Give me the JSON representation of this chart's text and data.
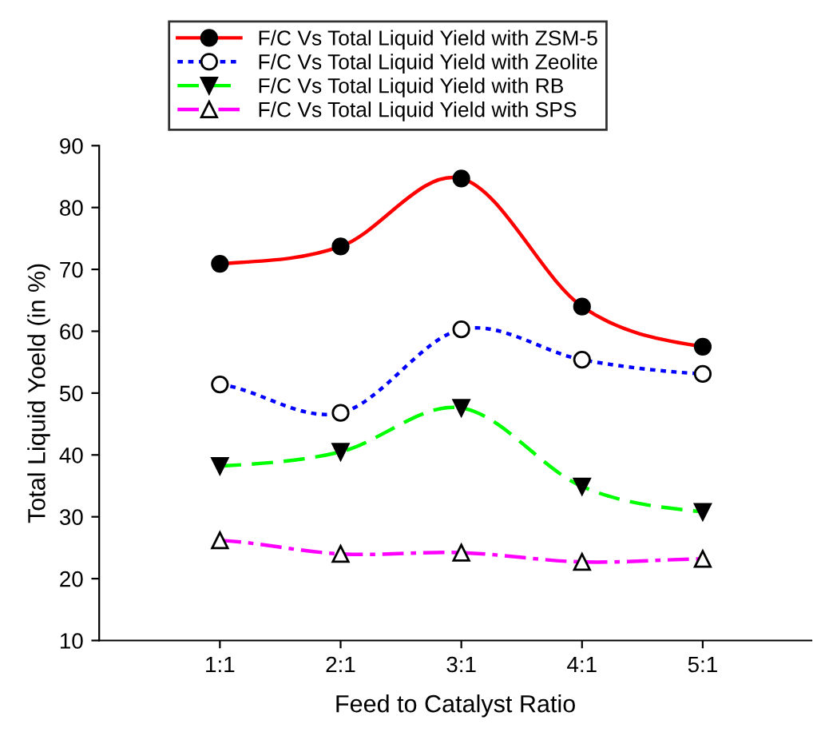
{
  "chart_data": {
    "type": "line",
    "xlabel": "Feed to Catalyst Ratio",
    "ylabel": "Total Liquid Yoeld (in %)",
    "categories": [
      "1:1",
      "2:1",
      "3:1",
      "4:1",
      "5:1"
    ],
    "series": [
      {
        "name": "F/C Vs Total Liquid Yield with ZSM-5",
        "color": "#ff0000",
        "line_style": "solid",
        "marker": "circle",
        "values": [
          70.9,
          73.7,
          84.7,
          64.0,
          57.5
        ]
      },
      {
        "name": "F/C Vs Total Liquid Yield with Zeolite",
        "color": "#0000ff",
        "line_style": "dotted",
        "marker": "circle open",
        "values": [
          51.4,
          46.8,
          60.3,
          55.4,
          53.1
        ]
      },
      {
        "name": "F/C Vs Total Liquid Yield with RB",
        "color": "#00ff00",
        "line_style": "dashed",
        "marker": "triangle_down",
        "values": [
          38.2,
          40.5,
          47.6,
          34.9,
          30.8
        ]
      },
      {
        "name": "F/C Vs Total Liquid Yield with SPS",
        "color": "#ff00ff",
        "line_style": "dashdot",
        "marker": "triangle open",
        "values": [
          26.2,
          24.0,
          24.2,
          22.7,
          23.2
        ]
      }
    ],
    "ylim": [
      10,
      90
    ],
    "yticks": [
      10,
      20,
      30,
      40,
      50,
      60,
      70,
      80,
      90
    ],
    "grid": false,
    "legend": "top"
  }
}
